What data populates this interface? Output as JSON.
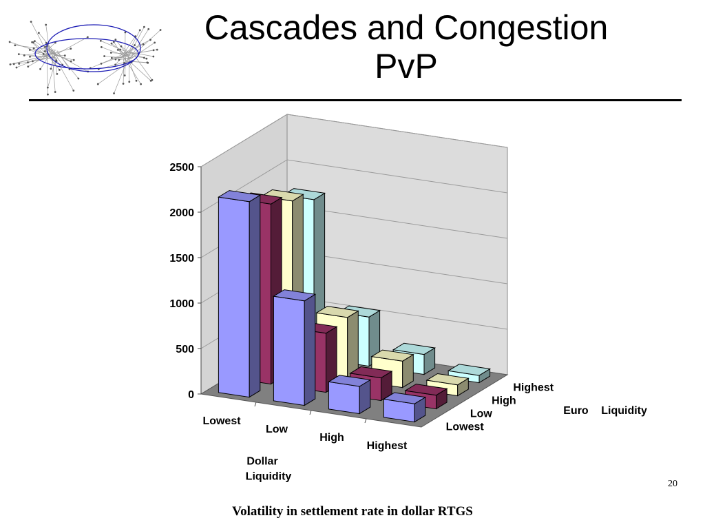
{
  "slide": {
    "title_line1": "Cascades and Congestion",
    "title_line2": "PvP",
    "page_number": "20",
    "caption": "Volatility in settlement rate in dollar RTGS"
  },
  "colors": {
    "series": [
      "#9999ff",
      "#993366",
      "#ffffcc",
      "#ccffff"
    ],
    "wall": "#d9d9d9",
    "floor": "#808080",
    "logo_ring": "#1a1ab4"
  },
  "chart_data": {
    "type": "bar",
    "subtype": "3d-clustered-bar",
    "categories": [
      "Lowest",
      "Low",
      "High",
      "Highest"
    ],
    "xlabel_line1": "Dollar",
    "xlabel_line2": "Liquidity",
    "depth_categories": [
      "Lowest",
      "Low",
      "High",
      "Highest"
    ],
    "zlabel_line1": "Euro",
    "zlabel_line2": "Liquidity",
    "ylim": [
      0,
      2500
    ],
    "yticks": [
      "0",
      "500",
      "1000",
      "1500",
      "2000",
      "2500"
    ],
    "grid": true,
    "legend": "none",
    "series": [
      {
        "values": [
          2150,
          1150,
          300,
          200
        ]
      },
      {
        "values": [
          1980,
          650,
          250,
          150
        ]
      },
      {
        "values": [
          1870,
          680,
          290,
          120
        ]
      },
      {
        "values": [
          1740,
          540,
          220,
          80
        ]
      }
    ]
  }
}
